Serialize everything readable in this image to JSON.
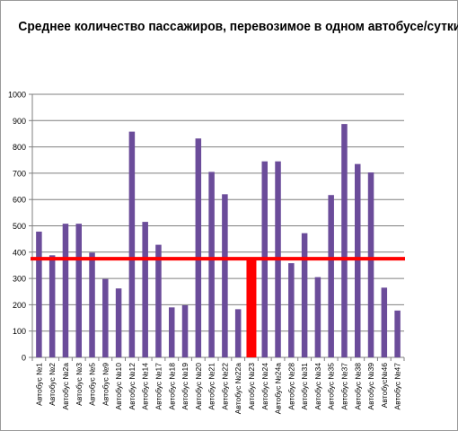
{
  "chart_data": {
    "type": "bar",
    "title": "Среднее количество пассажиров, перевозимое в одном автобусе/сутки",
    "xlabel": "",
    "ylabel": "",
    "ylim": [
      0,
      1000
    ],
    "ytick_step": 100,
    "grid": true,
    "legend": "none",
    "bar_color": "#6b4c9a",
    "reference_line": {
      "value": 375,
      "color": "#ff0000"
    },
    "highlighted_bar": {
      "category": "Автобус №23",
      "color": "#ff0000"
    },
    "categories": [
      "Автобус №1",
      "Автобус №2",
      "Автобус №2а",
      "Автобус №3",
      "Автобус №5",
      "Автобус №9",
      "Автобус №10",
      "Автобус №12",
      "Автобус №14",
      "Автобус №17",
      "Автобус №18",
      "Автобус №19",
      "Автобус №20",
      "Автобус №21",
      "Автобус №22",
      "Автобус №22а",
      "Автобус №23",
      "Автобус №24",
      "Автобус №24а",
      "Автобус №28",
      "Автобус №31",
      "Автобус №34",
      "Автобус №35",
      "Автобус №37",
      "Автобус №38",
      "Автобус №39",
      "Автобус№46",
      "Автобус №47"
    ],
    "values": [
      478,
      388,
      508,
      508,
      398,
      298,
      262,
      858,
      515,
      428,
      190,
      198,
      832,
      705,
      620,
      183,
      375,
      745,
      745,
      358,
      472,
      305,
      617,
      887,
      735,
      703,
      265,
      178
    ]
  }
}
